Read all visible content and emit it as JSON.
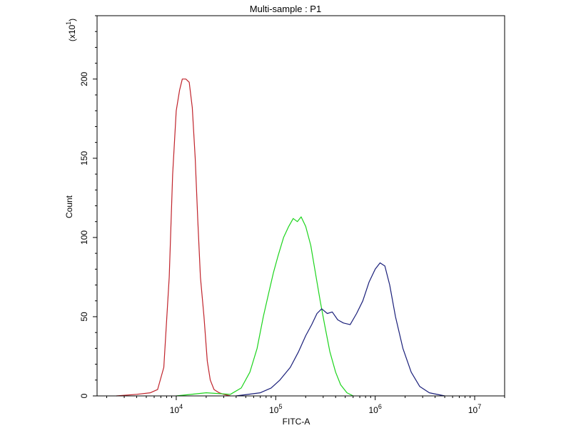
{
  "chart_data": {
    "type": "line",
    "title": "Multi-sample : P1",
    "xlabel": "FITC-A",
    "ylabel": "Count",
    "y_multiplier_label": "(x10",
    "y_multiplier_exponent": "1",
    "y_multiplier_close": ")",
    "x_scale": "log",
    "xlim": [
      1600,
      20000000
    ],
    "ylim": [
      0,
      240
    ],
    "x_ticks": [
      {
        "value": 10000,
        "base": "10",
        "exp": "4"
      },
      {
        "value": 100000,
        "base": "10",
        "exp": "5"
      },
      {
        "value": 1000000,
        "base": "10",
        "exp": "6"
      },
      {
        "value": 10000000,
        "base": "10",
        "exp": "7"
      }
    ],
    "y_ticks": [
      0,
      50,
      100,
      150,
      200
    ],
    "grid": false,
    "legend": "none",
    "series": [
      {
        "color": "#c0232b",
        "x": [
          2500,
          4000,
          5500,
          6500,
          7500,
          8500,
          9200,
          10000,
          10800,
          11500,
          12500,
          13500,
          14500,
          15500,
          16500,
          17500,
          19000,
          20500,
          22000,
          24000,
          27000,
          30000,
          35000
        ],
        "y": [
          0,
          1,
          2,
          4,
          18,
          75,
          140,
          180,
          193,
          200,
          200,
          198,
          182,
          150,
          110,
          75,
          50,
          22,
          10,
          4,
          2,
          1,
          0
        ]
      },
      {
        "color": "#1cd41c",
        "x": [
          10000,
          20000,
          35000,
          45000,
          55000,
          65000,
          75000,
          85000,
          95000,
          105000,
          120000,
          135000,
          150000,
          165000,
          180000,
          200000,
          225000,
          250000,
          280000,
          310000,
          350000,
          400000,
          450000,
          520000,
          600000
        ],
        "y": [
          0,
          2,
          1,
          5,
          15,
          30,
          50,
          65,
          78,
          88,
          100,
          107,
          112,
          110,
          113,
          107,
          95,
          78,
          60,
          45,
          28,
          15,
          7,
          2,
          0
        ]
      },
      {
        "color": "#1a1f7a",
        "x": [
          40000,
          70000,
          90000,
          110000,
          140000,
          170000,
          200000,
          230000,
          260000,
          290000,
          330000,
          370000,
          420000,
          480000,
          560000,
          650000,
          750000,
          870000,
          1000000,
          1120000,
          1250000,
          1400000,
          1600000,
          1900000,
          2300000,
          2800000,
          3500000,
          5000000
        ],
        "y": [
          0,
          2,
          5,
          10,
          18,
          28,
          38,
          45,
          52,
          55,
          52,
          53,
          48,
          46,
          45,
          52,
          60,
          72,
          80,
          84,
          82,
          70,
          50,
          30,
          15,
          6,
          2,
          0
        ]
      }
    ]
  }
}
